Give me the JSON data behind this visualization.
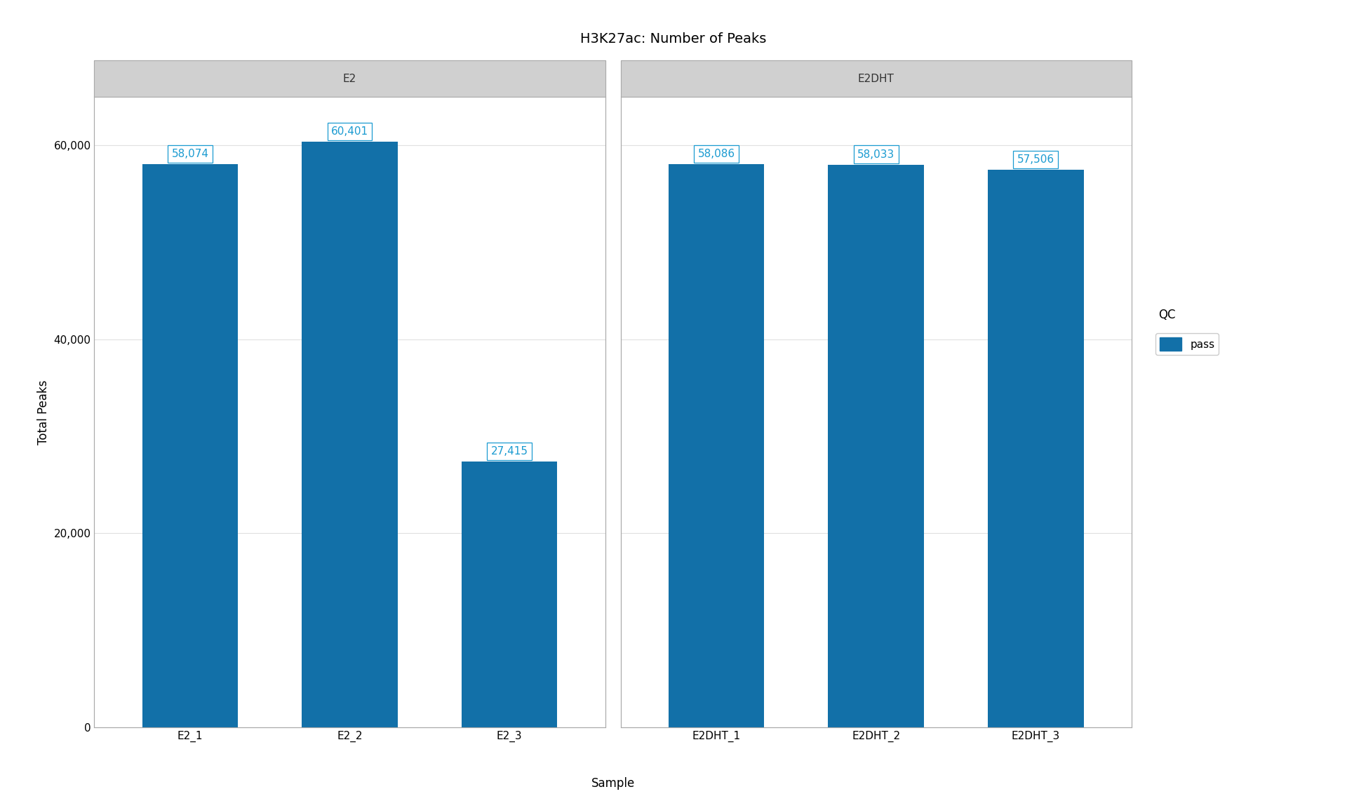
{
  "title": "H3K27ac: Number of Peaks",
  "xlabel": "Sample",
  "ylabel": "Total Peaks",
  "bar_color": "#1270a8",
  "facets": [
    {
      "label": "E2",
      "samples": [
        "E2_1",
        "E2_2",
        "E2_3"
      ],
      "values": [
        58074,
        60401,
        27415
      ],
      "qc": [
        "pass",
        "pass",
        "pass"
      ]
    },
    {
      "label": "E2DHT",
      "samples": [
        "E2DHT_1",
        "E2DHT_2",
        "E2DHT_3"
      ],
      "values": [
        58086,
        58033,
        57506
      ],
      "qc": [
        "pass",
        "pass",
        "pass"
      ]
    }
  ],
  "ylim": [
    0,
    65000
  ],
  "yticks": [
    0,
    20000,
    40000,
    60000
  ],
  "ytick_labels": [
    "0",
    "20,000",
    "40,000",
    "60,000"
  ],
  "legend_title": "QC",
  "legend_items": [
    {
      "label": "pass",
      "color": "#1270a8"
    }
  ],
  "annotation_color": "#1b9bd1",
  "annotation_box_facecolor": "white",
  "annotation_box_edgecolor": "#1b9bd1",
  "facet_header_bg": "#d0d0d0",
  "facet_header_text_color": "#333333",
  "facet_border_color": "#aaaaaa",
  "background_color": "white",
  "grid_color": "#e0e0e0",
  "title_fontsize": 14,
  "axis_label_fontsize": 12,
  "tick_fontsize": 11,
  "annotation_fontsize": 11,
  "facet_fontsize": 11
}
